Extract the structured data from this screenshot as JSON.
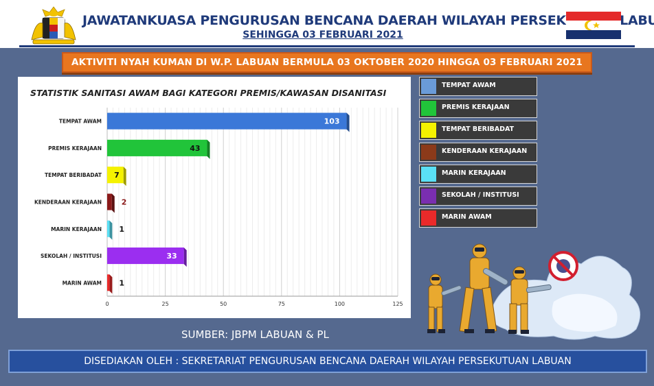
{
  "header": {
    "title": "JAWATANKUASA PENGURUSAN BENCANA DAERAH WILAYAH PERSEKUTUAN  LABUAN",
    "subtitle": "SEHINGGA 03 FEBRUARI 2021"
  },
  "banner": "AKTIVITI NYAH KUMAN DI W.P. LABUAN BERMULA 03 OKTOBER 2020 HINGGA 03 FEBRUARI 2021",
  "chart_data": {
    "type": "bar",
    "orientation": "horizontal",
    "title": "STATISTIK SANITASI AWAM BAGI KATEGORI PREMIS/KAWASAN DISANITASI",
    "categories": [
      "TEMPAT AWAM",
      "PREMIS KERAJAAN",
      "TEMPAT BERIBADAT",
      "KENDERAAN KERAJAAN",
      "MARIN KERAJAAN",
      "SEKOLAH / INSTITUSI",
      "MARIN AWAM"
    ],
    "values": [
      103,
      43,
      7,
      2,
      1,
      33,
      1
    ],
    "value_labels": [
      "103",
      "43",
      "7",
      "2",
      "1",
      "33",
      "1"
    ],
    "colors": [
      "#3b78d8",
      "#21c43a",
      "#f5f200",
      "#8b1a1a",
      "#5ae0f5",
      "#9b2ef0",
      "#ea2a2a"
    ],
    "xlim": [
      0,
      125
    ],
    "xticks": [
      0,
      25,
      50,
      75,
      100,
      125
    ],
    "xtick_labels": [
      "0",
      "25",
      "50",
      "75",
      "100",
      "125"
    ],
    "grid": true
  },
  "legend": [
    {
      "label": "TEMPAT AWAM",
      "color": "#6a9bd8"
    },
    {
      "label": "PREMIS KERAJAAN",
      "color": "#21c43a"
    },
    {
      "label": "TEMPAT BERIBADAT",
      "color": "#f5f200"
    },
    {
      "label": "KENDERAAN KERAJAAN",
      "color": "#8b3a1a"
    },
    {
      "label": "MARIN KERAJAAN",
      "color": "#5ae0f5"
    },
    {
      "label": "SEKOLAH / INSTITUSI",
      "color": "#7a2eb0"
    },
    {
      "label": "MARIN AWAM",
      "color": "#ea2a2a"
    }
  ],
  "source": "SUMBER: JBPM LABUAN & PL",
  "footer": "DISEDIAKAN OLEH : SEKRETARIAT PENGURUSAN BENCANA DAERAH WILAYAH PERSEKUTUAN LABUAN",
  "icons": {
    "crest": "malaysia-coat-of-arms-icon",
    "flag": "labuan-flag-icon",
    "illustration": "disinfection-workers-illustration",
    "virus": "no-virus-icon"
  }
}
